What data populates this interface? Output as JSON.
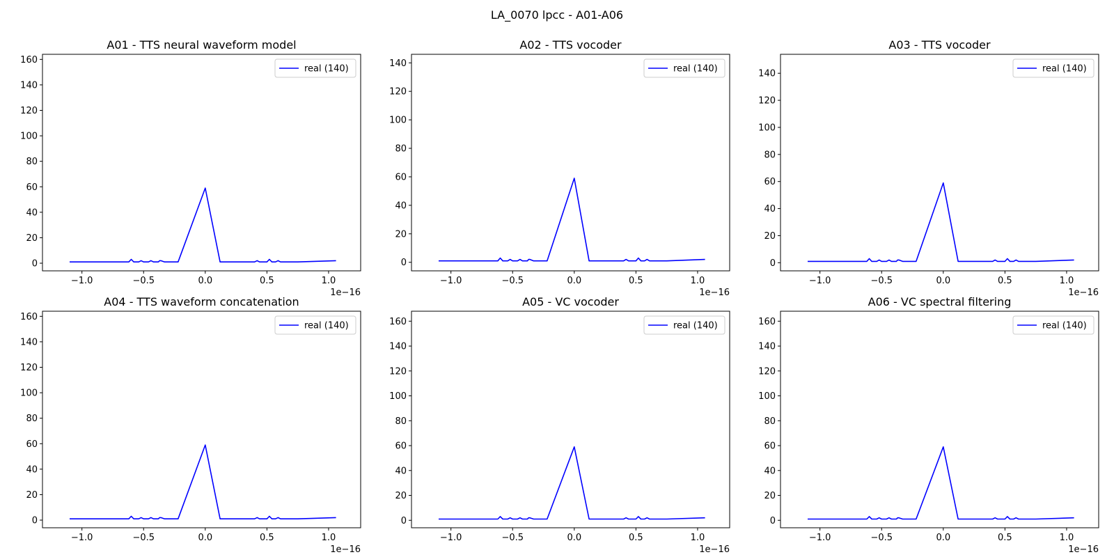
{
  "figure": {
    "title": "LA_0070 lpcc - A01-A06"
  },
  "colors": {
    "series": "#0000ff",
    "axes": "#000000",
    "legend_border": "#cccccc"
  },
  "chart_data": [
    {
      "type": "line",
      "title": "A01 - TTS neural waveform model",
      "xlabel": "",
      "ylabel": "",
      "x_offset_label": "1e−16",
      "xlim": [
        -1.32,
        1.26
      ],
      "ylim": [
        -6,
        164
      ],
      "xticks": [
        -1.0,
        -0.5,
        0.0,
        0.5,
        1.0
      ],
      "xtick_labels": [
        "−1.0",
        "−0.5",
        "0.0",
        "0.5",
        "1.0"
      ],
      "yticks": [
        0,
        20,
        40,
        60,
        80,
        100,
        120,
        140,
        160
      ],
      "ytick_labels": [
        "0",
        "20",
        "40",
        "60",
        "80",
        "100",
        "120",
        "140",
        "160"
      ],
      "legend": {
        "position": "upper right",
        "entries": [
          "real (140)"
        ]
      },
      "series": [
        {
          "name": "real (140)",
          "x": [
            -1.1,
            -0.62,
            -0.6,
            -0.58,
            -0.54,
            -0.52,
            -0.5,
            -0.46,
            -0.44,
            -0.42,
            -0.38,
            -0.37,
            -0.36,
            -0.33,
            -0.22,
            0.0,
            0.12,
            0.4,
            0.42,
            0.44,
            0.5,
            0.52,
            0.54,
            0.57,
            0.59,
            0.61,
            0.75,
            1.06
          ],
          "y": [
            1,
            1,
            3,
            1,
            1,
            2,
            1,
            1,
            2,
            1,
            1,
            2,
            2,
            1,
            1,
            59,
            1,
            1,
            2,
            1,
            1,
            3,
            1,
            1,
            2,
            1,
            1,
            2
          ]
        }
      ]
    },
    {
      "type": "line",
      "title": "A02 - TTS vocoder",
      "xlabel": "",
      "ylabel": "",
      "x_offset_label": "1e−16",
      "xlim": [
        -1.32,
        1.26
      ],
      "ylim": [
        -6,
        146
      ],
      "xticks": [
        -1.0,
        -0.5,
        0.0,
        0.5,
        1.0
      ],
      "xtick_labels": [
        "−1.0",
        "−0.5",
        "0.0",
        "0.5",
        "1.0"
      ],
      "yticks": [
        0,
        20,
        40,
        60,
        80,
        100,
        120,
        140
      ],
      "ytick_labels": [
        "0",
        "20",
        "40",
        "60",
        "80",
        "100",
        "120",
        "140"
      ],
      "legend": {
        "position": "upper right",
        "entries": [
          "real (140)"
        ]
      },
      "series": [
        {
          "name": "real (140)",
          "x": [
            -1.1,
            -0.62,
            -0.6,
            -0.58,
            -0.54,
            -0.52,
            -0.5,
            -0.46,
            -0.44,
            -0.42,
            -0.38,
            -0.37,
            -0.36,
            -0.33,
            -0.22,
            0.0,
            0.12,
            0.4,
            0.42,
            0.44,
            0.5,
            0.52,
            0.54,
            0.57,
            0.59,
            0.61,
            0.75,
            1.06
          ],
          "y": [
            1,
            1,
            3,
            1,
            1,
            2,
            1,
            1,
            2,
            1,
            1,
            2,
            2,
            1,
            1,
            59,
            1,
            1,
            2,
            1,
            1,
            3,
            1,
            1,
            2,
            1,
            1,
            2
          ]
        }
      ]
    },
    {
      "type": "line",
      "title": "A03 - TTS vocoder",
      "xlabel": "",
      "ylabel": "",
      "x_offset_label": "1e−16",
      "xlim": [
        -1.32,
        1.26
      ],
      "ylim": [
        -6,
        154
      ],
      "xticks": [
        -1.0,
        -0.5,
        0.0,
        0.5,
        1.0
      ],
      "xtick_labels": [
        "−1.0",
        "−0.5",
        "0.0",
        "0.5",
        "1.0"
      ],
      "yticks": [
        0,
        20,
        40,
        60,
        80,
        100,
        120,
        140
      ],
      "ytick_labels": [
        "0",
        "20",
        "40",
        "60",
        "80",
        "100",
        "120",
        "140"
      ],
      "legend": {
        "position": "upper right",
        "entries": [
          "real (140)"
        ]
      },
      "series": [
        {
          "name": "real (140)",
          "x": [
            -1.1,
            -0.62,
            -0.6,
            -0.58,
            -0.54,
            -0.52,
            -0.5,
            -0.46,
            -0.44,
            -0.42,
            -0.38,
            -0.37,
            -0.36,
            -0.33,
            -0.22,
            0.0,
            0.12,
            0.4,
            0.42,
            0.44,
            0.5,
            0.52,
            0.54,
            0.57,
            0.59,
            0.61,
            0.75,
            1.06
          ],
          "y": [
            1,
            1,
            3,
            1,
            1,
            2,
            1,
            1,
            2,
            1,
            1,
            2,
            2,
            1,
            1,
            59,
            1,
            1,
            2,
            1,
            1,
            3,
            1,
            1,
            2,
            1,
            1,
            2
          ]
        }
      ]
    },
    {
      "type": "line",
      "title": "A04 - TTS waveform concatenation",
      "xlabel": "",
      "ylabel": "",
      "x_offset_label": "1e−16",
      "xlim": [
        -1.32,
        1.26
      ],
      "ylim": [
        -6,
        164
      ],
      "xticks": [
        -1.0,
        -0.5,
        0.0,
        0.5,
        1.0
      ],
      "xtick_labels": [
        "−1.0",
        "−0.5",
        "0.0",
        "0.5",
        "1.0"
      ],
      "yticks": [
        0,
        20,
        40,
        60,
        80,
        100,
        120,
        140,
        160
      ],
      "ytick_labels": [
        "0",
        "20",
        "40",
        "60",
        "80",
        "100",
        "120",
        "140",
        "160"
      ],
      "legend": {
        "position": "upper right",
        "entries": [
          "real (140)"
        ]
      },
      "series": [
        {
          "name": "real (140)",
          "x": [
            -1.1,
            -0.62,
            -0.6,
            -0.58,
            -0.54,
            -0.52,
            -0.5,
            -0.46,
            -0.44,
            -0.42,
            -0.38,
            -0.37,
            -0.36,
            -0.33,
            -0.22,
            0.0,
            0.12,
            0.4,
            0.42,
            0.44,
            0.5,
            0.52,
            0.54,
            0.57,
            0.59,
            0.61,
            0.75,
            1.06
          ],
          "y": [
            1,
            1,
            3,
            1,
            1,
            2,
            1,
            1,
            2,
            1,
            1,
            2,
            2,
            1,
            1,
            59,
            1,
            1,
            2,
            1,
            1,
            3,
            1,
            1,
            2,
            1,
            1,
            2
          ]
        }
      ]
    },
    {
      "type": "line",
      "title": "A05 - VC vocoder",
      "xlabel": "",
      "ylabel": "",
      "x_offset_label": "1e−16",
      "xlim": [
        -1.32,
        1.26
      ],
      "ylim": [
        -6,
        168
      ],
      "xticks": [
        -1.0,
        -0.5,
        0.0,
        0.5,
        1.0
      ],
      "xtick_labels": [
        "−1.0",
        "−0.5",
        "0.0",
        "0.5",
        "1.0"
      ],
      "yticks": [
        0,
        20,
        40,
        60,
        80,
        100,
        120,
        140,
        160
      ],
      "ytick_labels": [
        "0",
        "20",
        "40",
        "60",
        "80",
        "100",
        "120",
        "140",
        "160"
      ],
      "legend": {
        "position": "upper right",
        "entries": [
          "real (140)"
        ]
      },
      "series": [
        {
          "name": "real (140)",
          "x": [
            -1.1,
            -0.62,
            -0.6,
            -0.58,
            -0.54,
            -0.52,
            -0.5,
            -0.46,
            -0.44,
            -0.42,
            -0.38,
            -0.37,
            -0.36,
            -0.33,
            -0.22,
            0.0,
            0.12,
            0.4,
            0.42,
            0.44,
            0.5,
            0.52,
            0.54,
            0.57,
            0.59,
            0.61,
            0.75,
            1.06
          ],
          "y": [
            1,
            1,
            3,
            1,
            1,
            2,
            1,
            1,
            2,
            1,
            1,
            2,
            2,
            1,
            1,
            59,
            1,
            1,
            2,
            1,
            1,
            3,
            1,
            1,
            2,
            1,
            1,
            2
          ]
        }
      ]
    },
    {
      "type": "line",
      "title": "A06 - VC spectral filtering",
      "xlabel": "",
      "ylabel": "",
      "x_offset_label": "1e−16",
      "xlim": [
        -1.32,
        1.26
      ],
      "ylim": [
        -6,
        168
      ],
      "xticks": [
        -1.0,
        -0.5,
        0.0,
        0.5,
        1.0
      ],
      "xtick_labels": [
        "−1.0",
        "−0.5",
        "0.0",
        "0.5",
        "1.0"
      ],
      "yticks": [
        0,
        20,
        40,
        60,
        80,
        100,
        120,
        140,
        160
      ],
      "ytick_labels": [
        "0",
        "20",
        "40",
        "60",
        "80",
        "100",
        "120",
        "140",
        "160"
      ],
      "legend": {
        "position": "upper right",
        "entries": [
          "real (140)"
        ]
      },
      "series": [
        {
          "name": "real (140)",
          "x": [
            -1.1,
            -0.62,
            -0.6,
            -0.58,
            -0.54,
            -0.52,
            -0.5,
            -0.46,
            -0.44,
            -0.42,
            -0.38,
            -0.37,
            -0.36,
            -0.33,
            -0.22,
            0.0,
            0.12,
            0.4,
            0.42,
            0.44,
            0.5,
            0.52,
            0.54,
            0.57,
            0.59,
            0.61,
            0.75,
            1.06
          ],
          "y": [
            1,
            1,
            3,
            1,
            1,
            2,
            1,
            1,
            2,
            1,
            1,
            2,
            2,
            1,
            1,
            59,
            1,
            1,
            2,
            1,
            1,
            3,
            1,
            1,
            2,
            1,
            1,
            2
          ]
        }
      ]
    }
  ]
}
